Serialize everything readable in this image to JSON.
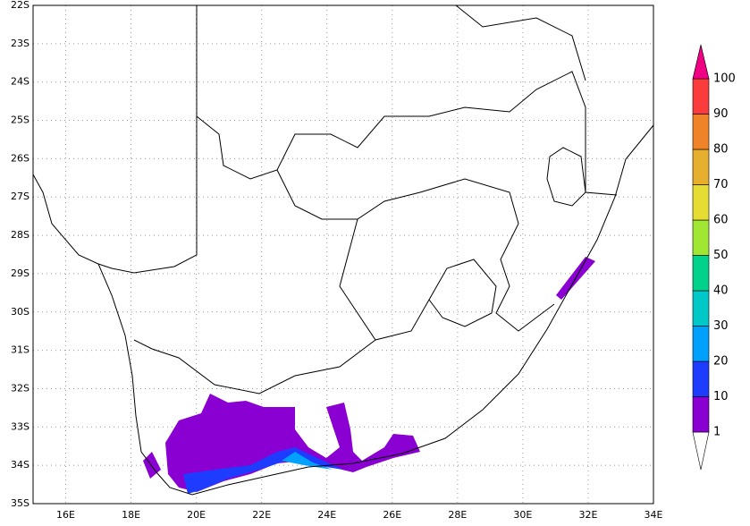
{
  "map": {
    "lat_labels": [
      "22S",
      "23S",
      "24S",
      "25S",
      "26S",
      "27S",
      "28S",
      "29S",
      "30S",
      "31S",
      "32S",
      "33S",
      "34S",
      "35S"
    ],
    "lon_labels": [
      "16E",
      "18E",
      "20E",
      "22E",
      "24E",
      "26E",
      "28E",
      "30E",
      "32E",
      "34E"
    ],
    "colorbar": {
      "labels": [
        1,
        10,
        20,
        30,
        40,
        50,
        60,
        70,
        80,
        90,
        100
      ],
      "colors": [
        "#ffffff",
        "#8a00d2",
        "#1e3cff",
        "#00a0ff",
        "#00c8c8",
        "#00d28c",
        "#a0e632",
        "#e6dc32",
        "#e6af2d",
        "#f08228",
        "#fa3c3c",
        "#f00082"
      ]
    }
  }
}
